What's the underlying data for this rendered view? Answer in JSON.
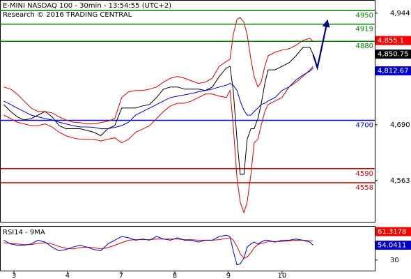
{
  "chart_data": [
    {
      "type": "line",
      "title": "E-MINI NASDAQ 100 - 30min - 13:54:55 (UTC+2)",
      "subtitle": "Research © 2016 TRADING CENTRAL",
      "x": [
        -0.19,
        -0.06,
        0.06,
        0.19,
        0.32,
        0.45,
        0.58,
        0.71,
        0.84,
        0.97,
        1.1,
        1.23,
        1.36,
        1.49,
        1.62,
        1.75,
        1.88,
        2.01,
        2.14,
        2.27,
        2.4,
        2.53,
        2.66,
        2.79,
        2.92,
        3.05,
        3.18,
        3.31,
        3.44,
        3.57,
        3.7,
        3.83,
        3.96,
        4.03,
        4.09,
        4.16,
        4.22,
        4.29,
        4.35,
        4.42,
        4.48,
        4.55,
        4.61,
        4.68,
        4.74,
        4.87,
        5.0,
        5.13,
        5.26,
        5.39,
        5.52,
        5.58
      ],
      "series": [
        {
          "color": "#000000",
          "values": [
            4736,
            4720,
            4708,
            4701,
            4704,
            4712,
            4720,
            4708,
            4688,
            4681,
            4681,
            4681,
            4677,
            4673,
            4665,
            4681,
            4688,
            4728,
            4728,
            4728,
            4733,
            4736,
            4752,
            4771,
            4776,
            4776,
            4771,
            4771,
            4771,
            4768,
            4776,
            4800,
            4819,
            4823,
            4768,
            4657,
            4577,
            4577,
            4657,
            4681,
            4681,
            4704,
            4736,
            4784,
            4815,
            4815,
            4823,
            4831,
            4847,
            4866,
            4866,
            4850
          ]
        },
        {
          "color": "#dd0000",
          "values": [
            4776,
            4771,
            4760,
            4744,
            4728,
            4720,
            4720,
            4717,
            4708,
            4701,
            4696,
            4695,
            4692,
            4692,
            4695,
            4698,
            4704,
            4752,
            4765,
            4768,
            4768,
            4771,
            4776,
            4787,
            4796,
            4800,
            4796,
            4790,
            4784,
            4787,
            4796,
            4823,
            4834,
            4839,
            4895,
            4930,
            4934,
            4923,
            4895,
            4839,
            4800,
            4776,
            4787,
            4823,
            4847,
            4855,
            4860,
            4863,
            4871,
            4882,
            4887,
            4879
          ]
        },
        {
          "color": "#dd0000",
          "values": [
            4712,
            4704,
            4696,
            4692,
            4688,
            4688,
            4692,
            4685,
            4673,
            4665,
            4660,
            4657,
            4657,
            4657,
            4653,
            4657,
            4660,
            4649,
            4657,
            4673,
            4680,
            4688,
            4704,
            4720,
            4733,
            4739,
            4739,
            4744,
            4752,
            4760,
            4760,
            4755,
            4752,
            4768,
            4688,
            4569,
            4514,
            4490,
            4514,
            4577,
            4649,
            4657,
            4688,
            4720,
            4736,
            4744,
            4752,
            4776,
            4787,
            4800,
            4815,
            4823
          ]
        },
        {
          "color": "#0000cc",
          "values": [
            4744,
            4736,
            4728,
            4720,
            4712,
            4708,
            4704,
            4701,
            4696,
            4692,
            4688,
            4685,
            4685,
            4684,
            4681,
            4681,
            4684,
            4688,
            4696,
            4712,
            4720,
            4728,
            4736,
            4744,
            4752,
            4755,
            4758,
            4761,
            4765,
            4768,
            4771,
            4776,
            4780,
            4784,
            4780,
            4768,
            4744,
            4723,
            4712,
            4712,
            4720,
            4728,
            4736,
            4739,
            4744,
            4752,
            4768,
            4776,
            4792,
            4803,
            4812,
            4819
          ]
        }
      ],
      "forecast": {
        "x": [
          5.58,
          5.66,
          5.84
        ],
        "values": [
          4850,
          4820,
          4923
        ],
        "color": "#00008b"
      },
      "levels": [
        {
          "value": 4950,
          "color": "#008000"
        },
        {
          "value": 4919,
          "color": "#008000"
        },
        {
          "value": 4880,
          "color": "#008000"
        },
        {
          "value": 4700,
          "color": "#0000cc"
        },
        {
          "value": 4590,
          "color": "#cc0000"
        },
        {
          "value": 4558,
          "color": "#cc0000"
        }
      ],
      "markers": [
        {
          "value": 4855.1,
          "label": "4,855.1",
          "color": "#ff0000"
        },
        {
          "value": 4850.75,
          "label": "4,850.75",
          "color": "#000000"
        },
        {
          "value": 4812.67,
          "label": "4,812.67",
          "color": "#0000cc"
        }
      ],
      "xlim": [
        -0.26,
        6.73
      ],
      "ylim": [
        4469,
        4974
      ],
      "yticks": [
        {
          "value": 4944,
          "label": "4,944"
        },
        {
          "value": 4690,
          "label": "4,690"
        },
        {
          "value": 4563,
          "label": "4,563"
        }
      ]
    },
    {
      "type": "line",
      "title": "RSI14 - 9MA",
      "x": [
        -0.19,
        -0.06,
        0.06,
        0.19,
        0.32,
        0.45,
        0.58,
        0.71,
        0.84,
        0.97,
        1.1,
        1.23,
        1.36,
        1.49,
        1.62,
        1.75,
        1.88,
        2.01,
        2.14,
        2.27,
        2.4,
        2.53,
        2.66,
        2.79,
        2.92,
        3.05,
        3.18,
        3.31,
        3.44,
        3.57,
        3.7,
        3.83,
        3.96,
        4.03,
        4.09,
        4.16,
        4.22,
        4.29,
        4.35,
        4.42,
        4.48,
        4.55,
        4.61,
        4.68,
        4.74,
        4.87,
        5.0,
        5.13,
        5.26,
        5.39,
        5.52,
        5.58
      ],
      "series": [
        {
          "color": "#dd0000",
          "values": [
            58,
            57,
            56,
            55,
            55,
            57,
            58,
            56,
            52,
            49,
            48,
            50,
            51,
            50,
            48,
            50,
            54,
            58,
            62,
            63,
            63,
            63,
            64,
            64,
            64,
            64,
            63,
            63,
            62,
            62,
            62,
            63,
            65,
            66,
            62,
            52,
            40,
            33,
            35,
            42,
            50,
            55,
            57,
            58,
            60,
            60,
            60,
            61,
            62,
            62,
            61,
            61
          ]
        },
        {
          "color": "#0000cc",
          "values": [
            62,
            56,
            54,
            54,
            56,
            62,
            59,
            51,
            45,
            47,
            51,
            54,
            51,
            47,
            45,
            56,
            62,
            68,
            66,
            62,
            64,
            62,
            68,
            64,
            62,
            66,
            62,
            62,
            59,
            62,
            62,
            68,
            70,
            68,
            45,
            22,
            24,
            33,
            51,
            56,
            59,
            56,
            59,
            62,
            62,
            59,
            62,
            62,
            64,
            62,
            59,
            54
          ]
        }
      ],
      "markers": [
        {
          "value": 61.3178,
          "label": "61.3178",
          "color": "#ff0000"
        },
        {
          "value": 54.0411,
          "label": "54.0411",
          "color": "#0000cc"
        }
      ],
      "xlim": [
        -0.26,
        6.73
      ],
      "ylim": [
        13,
        85
      ],
      "yticks": [
        30
      ],
      "xticks": [
        {
          "value": 0,
          "label": "3"
        },
        {
          "value": 1,
          "label": "4"
        },
        {
          "value": 2,
          "label": "7"
        },
        {
          "value": 3,
          "label": "8"
        },
        {
          "value": 4,
          "label": "9"
        },
        {
          "value": 5,
          "label": "10"
        }
      ]
    }
  ]
}
